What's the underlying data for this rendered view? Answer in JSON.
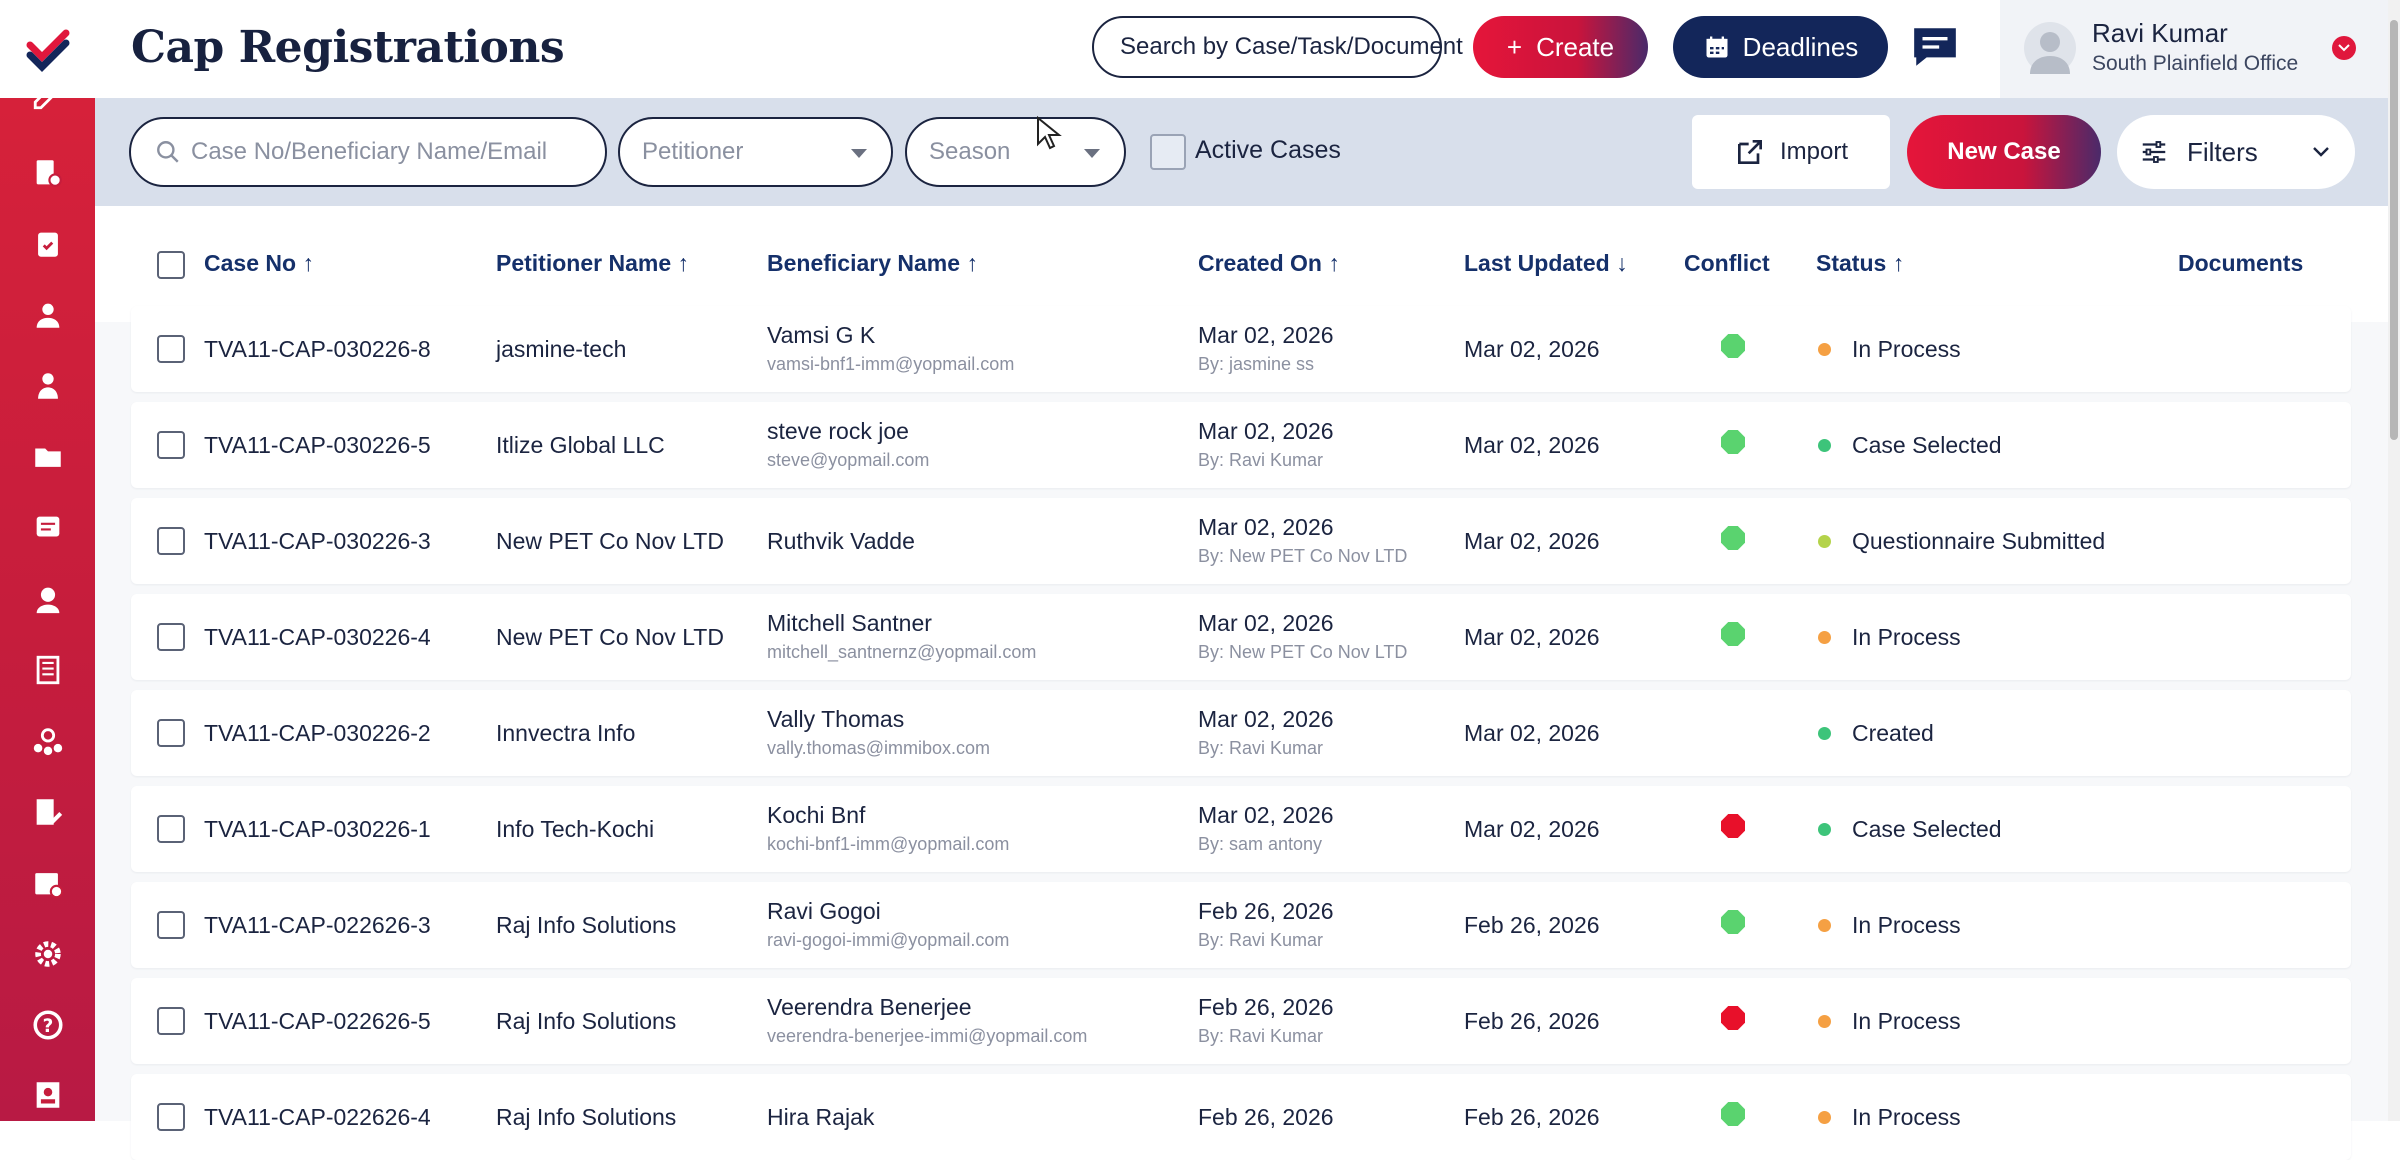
{
  "app": {
    "title": "Cap Registrations"
  },
  "header": {
    "search_placeholder": "Search by Case/Task/Document",
    "create_label": "Create",
    "deadlines_label": "Deadlines",
    "user_name": "Ravi Kumar",
    "user_office": "South Plainfield Office"
  },
  "toolbar": {
    "case_search_placeholder": "Case No/Beneficiary Name/Email",
    "petitioner_placeholder": "Petitioner",
    "season_placeholder": "Season",
    "active_cases_label": "Active Cases",
    "import_label": "Import",
    "new_case_label": "New Case",
    "filters_label": "Filters"
  },
  "columns": {
    "case_no": "Case No",
    "petitioner": "Petitioner Name",
    "beneficiary": "Beneficiary Name",
    "created_on": "Created On",
    "last_updated": "Last Updated",
    "conflict": "Conflict",
    "status": "Status",
    "documents": "Documents"
  },
  "colors": {
    "brand_red": "#e0173c",
    "navy": "#13265a",
    "conflict_ok": "#5ad36f",
    "conflict_bad": "#e8102a",
    "status_in_process": "#f5a043",
    "status_selected": "#3dc47a",
    "status_submitted": "#b4d34a",
    "status_created": "#3dc47a"
  },
  "rows": [
    {
      "case_no": "TVA11-CAP-030226-8",
      "petitioner": "jasmine-tech",
      "beneficiary": "Vamsi G K",
      "email": "vamsi-bnf1-imm@yopmail.com",
      "created": "Mar 02, 2026",
      "created_by": "By: jasmine ss",
      "updated": "Mar 02, 2026",
      "conflict": "ok",
      "status": "In Process",
      "status_color": "#f5a043"
    },
    {
      "case_no": "TVA11-CAP-030226-5",
      "petitioner": "Itlize Global LLC",
      "beneficiary": "steve rock joe",
      "email": "steve@yopmail.com",
      "created": "Mar 02, 2026",
      "created_by": "By: Ravi Kumar",
      "updated": "Mar 02, 2026",
      "conflict": "ok",
      "status": "Case Selected",
      "status_color": "#3dc47a"
    },
    {
      "case_no": "TVA11-CAP-030226-3",
      "petitioner": "New PET Co Nov LTD",
      "beneficiary": "Ruthvik Vadde",
      "email": "",
      "created": "Mar 02, 2026",
      "created_by": "By: New PET Co Nov LTD",
      "updated": "Mar 02, 2026",
      "conflict": "ok",
      "status": "Questionnaire Submitted",
      "status_color": "#b4d34a"
    },
    {
      "case_no": "TVA11-CAP-030226-4",
      "petitioner": "New PET Co Nov LTD",
      "beneficiary": "Mitchell Santner",
      "email": "mitchell_santnernz@yopmail.com",
      "created": "Mar 02, 2026",
      "created_by": "By: New PET Co Nov LTD",
      "updated": "Mar 02, 2026",
      "conflict": "ok",
      "status": "In Process",
      "status_color": "#f5a043"
    },
    {
      "case_no": "TVA11-CAP-030226-2",
      "petitioner": "Innvectra Info",
      "beneficiary": "Vally Thomas",
      "email": "vally.thomas@immibox.com",
      "created": "Mar 02, 2026",
      "created_by": "By: Ravi Kumar",
      "updated": "Mar 02, 2026",
      "conflict": "none",
      "status": "Created",
      "status_color": "#3dc47a"
    },
    {
      "case_no": "TVA11-CAP-030226-1",
      "petitioner": "Info Tech-Kochi",
      "beneficiary": "Kochi Bnf",
      "email": "kochi-bnf1-imm@yopmail.com",
      "created": "Mar 02, 2026",
      "created_by": "By: sam antony",
      "updated": "Mar 02, 2026",
      "conflict": "bad",
      "status": "Case Selected",
      "status_color": "#3dc47a"
    },
    {
      "case_no": "TVA11-CAP-022626-3",
      "petitioner": "Raj Info Solutions",
      "beneficiary": "Ravi Gogoi",
      "email": "ravi-gogoi-immi@yopmail.com",
      "created": "Feb 26, 2026",
      "created_by": "By: Ravi Kumar",
      "updated": "Feb 26, 2026",
      "conflict": "ok",
      "status": "In Process",
      "status_color": "#f5a043"
    },
    {
      "case_no": "TVA11-CAP-022626-5",
      "petitioner": "Raj Info Solutions",
      "beneficiary": "Veerendra Benerjee",
      "email": "veerendra-benerjee-immi@yopmail.com",
      "created": "Feb 26, 2026",
      "created_by": "By: Ravi Kumar",
      "updated": "Feb 26, 2026",
      "conflict": "bad",
      "status": "In Process",
      "status_color": "#f5a043"
    },
    {
      "case_no": "TVA11-CAP-022626-4",
      "petitioner": "Raj Info Solutions",
      "beneficiary": "Hira Rajak",
      "email": "",
      "created": "Feb 26, 2026",
      "created_by": "",
      "updated": "Feb 26, 2026",
      "conflict": "ok",
      "status": "In Process",
      "status_color": "#f5a043"
    }
  ]
}
